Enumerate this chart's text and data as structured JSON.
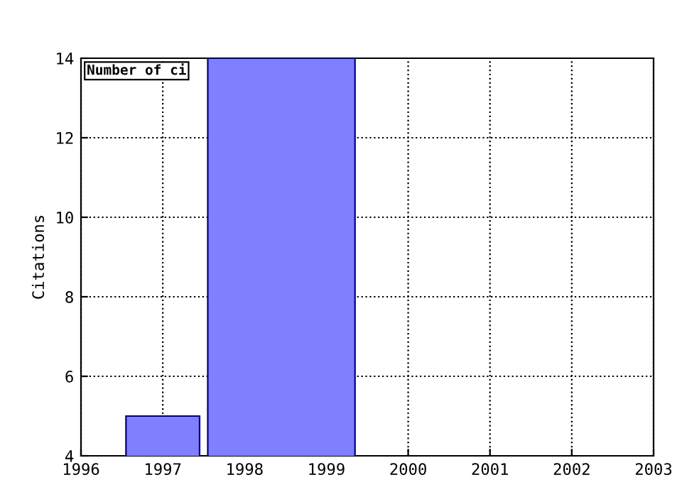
{
  "chart_data": {
    "type": "histogram",
    "ylabel": "Citations",
    "bins": [
      1996.55,
      1997.45,
      1997.55,
      1999.35
    ],
    "values": [
      5,
      null,
      14
    ],
    "color": "#8080ff",
    "xlim": [
      1996,
      2003
    ],
    "xticks": [
      1996,
      1997,
      1998,
      1999,
      2000,
      2001,
      2002,
      2003
    ],
    "ylim": [
      4,
      14
    ],
    "yticks": [
      4,
      6,
      8,
      10,
      12,
      14
    ],
    "grid": true,
    "annotations": [
      "Number of ci"
    ]
  }
}
